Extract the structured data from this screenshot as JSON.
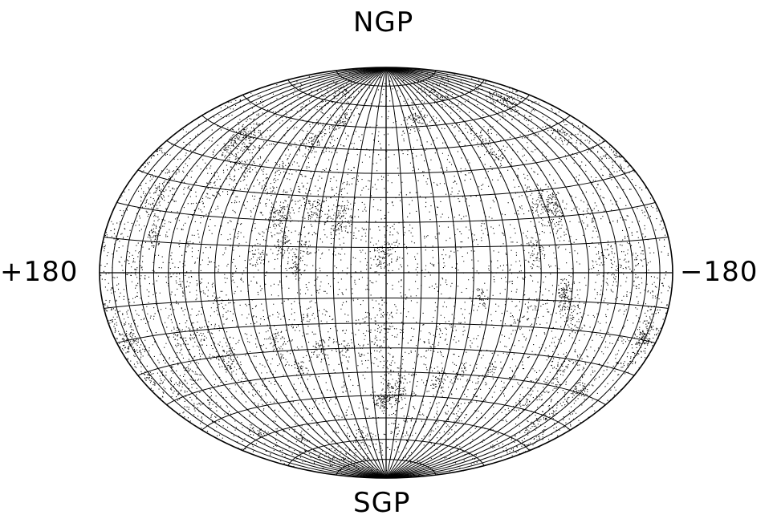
{
  "labels": {
    "north_pole": "NGP",
    "south_pole": "SGP",
    "left_longitude": "+180",
    "right_longitude": "−180"
  },
  "map": {
    "projection": "Hammer-Aitoff (equal-area, all-sky)",
    "graticule_meridian_step_deg": 10,
    "graticule_parallel_step_deg": 10,
    "longitude_direction": "increasing to the left",
    "content": "dense field of point sources with many small clumps",
    "colors": {
      "ink": "#000000",
      "background": "#ffffff"
    }
  }
}
